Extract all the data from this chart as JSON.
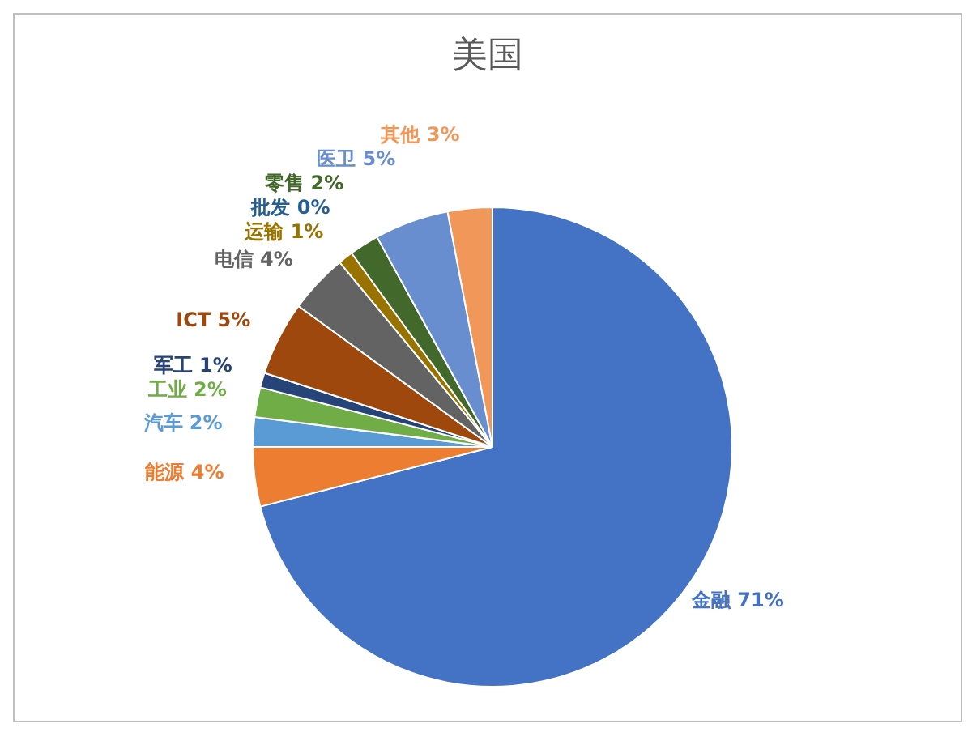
{
  "chart_data": {
    "type": "pie",
    "title": "美国",
    "categories": [
      "金融",
      "能源",
      "汽车",
      "工业",
      "军工",
      "ICT",
      "电信",
      "运输",
      "批发",
      "零售",
      "医卫",
      "其他"
    ],
    "values": [
      71,
      4,
      2,
      2,
      1,
      5,
      4,
      1,
      0,
      2,
      5,
      3
    ],
    "colors": [
      "#4472c4",
      "#ed7d31",
      "#5b9bd5",
      "#70ad47",
      "#264478",
      "#9e480e",
      "#636363",
      "#997300",
      "#255e91",
      "#43682b",
      "#698ed0",
      "#f1975a"
    ],
    "value_labels": [
      "71%",
      "4%",
      "2%",
      "2%",
      "1%",
      "5%",
      "4%",
      "1%",
      "0%",
      "2%",
      "5%",
      "3%"
    ],
    "legend": false
  }
}
